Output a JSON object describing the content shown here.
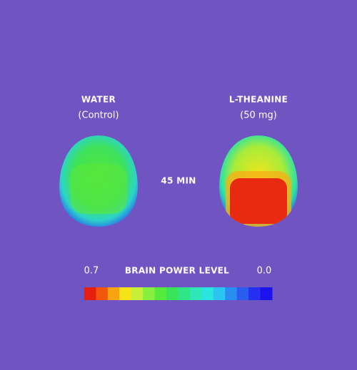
{
  "panels": [
    {
      "title": "WATER",
      "subtitle": "(Control)"
    },
    {
      "title": "L-THEANINE",
      "subtitle": "(50 mg)"
    }
  ],
  "time_label": "45 MIN",
  "legend": {
    "title": "BRAIN POWER LEVEL",
    "min": 0.7,
    "max": {
      "value": 0,
      "label": "0.0"
    },
    "colors": [
      "#e62010",
      "#f2560c",
      "#f7a412",
      "#f5e41a",
      "#c6ef38",
      "#88ee3e",
      "#55ea3c",
      "#3ae458",
      "#30e488",
      "#2ee6b6",
      "#2ce4de",
      "#2cc4f0",
      "#2a8ef0",
      "#2a5cf0",
      "#2530f2",
      "#1c12ee"
    ]
  }
}
